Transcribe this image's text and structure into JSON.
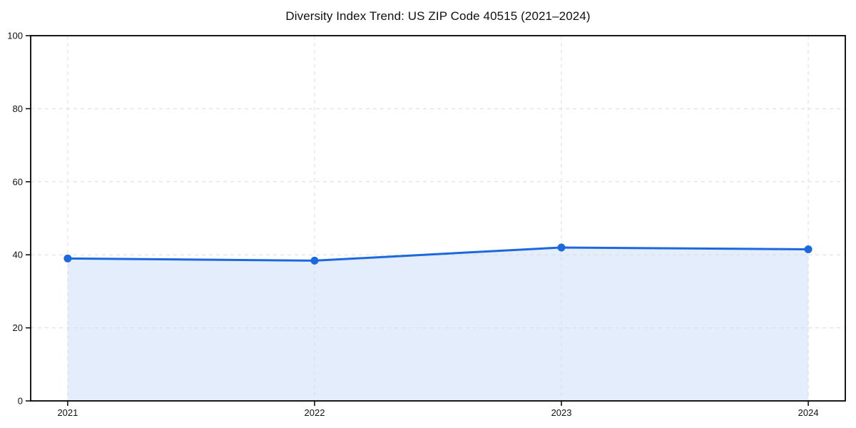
{
  "chart_data": {
    "type": "area",
    "title": "Diversity Index Trend: US ZIP Code 40515 (2021–2024)",
    "categories": [
      "2021",
      "2022",
      "2023",
      "2024"
    ],
    "series": [
      {
        "name": "Diversity Index",
        "values": [
          39.0,
          38.4,
          42.0,
          41.5
        ]
      }
    ],
    "xlabel": "",
    "ylabel": "",
    "ylim": [
      0,
      100
    ],
    "yticks": [
      0,
      20,
      40,
      60,
      80,
      100
    ],
    "grid": true,
    "grid_style": "dashed",
    "legend_position": "none",
    "colors": {
      "line": "#1c68dd",
      "marker": "#1c68dd",
      "fill": "#1c68dd",
      "fill_opacity": 0.12,
      "grid": "#dcdcdc",
      "axis": "#000000",
      "background": "#ffffff",
      "text": "#111111"
    }
  }
}
